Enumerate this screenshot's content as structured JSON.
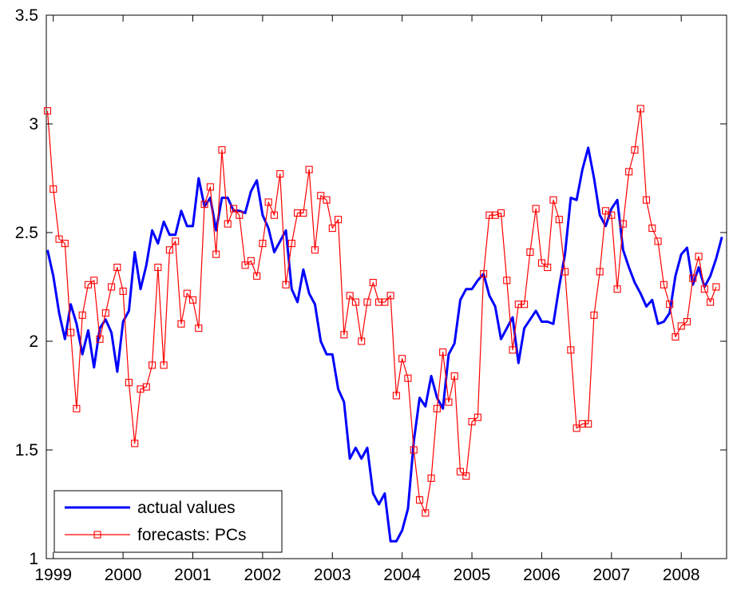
{
  "chart_data": {
    "type": "line",
    "title": "",
    "xlabel": "",
    "ylabel": "",
    "xlim": [
      1998.9,
      2008.65
    ],
    "ylim": [
      1,
      3.5
    ],
    "x_ticks": [
      1999,
      2000,
      2001,
      2002,
      2003,
      2004,
      2005,
      2006,
      2007,
      2008
    ],
    "x_tick_labels": [
      "1999",
      "2000",
      "2001",
      "2002",
      "2003",
      "2004",
      "2005",
      "2006",
      "2007",
      "2008"
    ],
    "y_ticks": [
      1,
      1.5,
      2,
      2.5,
      3,
      3.5
    ],
    "y_tick_labels": [
      "1",
      "1.5",
      "2",
      "2.5",
      "3",
      "3.5"
    ],
    "grid": false,
    "legend_position": "bottom-left",
    "x_start": 1998.917,
    "x_step": 0.08333,
    "series": [
      {
        "name": "actual values",
        "color": "#0000ff",
        "marker": "none",
        "values": [
          2.42,
          2.3,
          2.13,
          2.01,
          2.17,
          2.08,
          1.94,
          2.05,
          1.88,
          2.06,
          2.1,
          2.04,
          1.86,
          2.09,
          2.14,
          2.41,
          2.24,
          2.35,
          2.51,
          2.45,
          2.55,
          2.49,
          2.49,
          2.6,
          2.53,
          2.53,
          2.75,
          2.62,
          2.66,
          2.51,
          2.66,
          2.66,
          2.6,
          2.6,
          2.59,
          2.69,
          2.74,
          2.58,
          2.52,
          2.41,
          2.46,
          2.51,
          2.24,
          2.18,
          2.33,
          2.22,
          2.17,
          2.0,
          1.94,
          1.94,
          1.78,
          1.72,
          1.46,
          1.51,
          1.46,
          1.51,
          1.3,
          1.25,
          1.3,
          1.08,
          1.08,
          1.13,
          1.23,
          1.54,
          1.74,
          1.7,
          1.84,
          1.74,
          1.69,
          1.94,
          1.99,
          2.19,
          2.24,
          2.24,
          2.28,
          2.31,
          2.21,
          2.16,
          2.01,
          2.06,
          2.11,
          1.9,
          2.06,
          2.1,
          2.14,
          2.09,
          2.09,
          2.08,
          2.25,
          2.4,
          2.66,
          2.65,
          2.79,
          2.89,
          2.75,
          2.58,
          2.53,
          2.61,
          2.65,
          2.42,
          2.34,
          2.27,
          2.22,
          2.16,
          2.19,
          2.08,
          2.09,
          2.13,
          2.3,
          2.4,
          2.43,
          2.26,
          2.34,
          2.25,
          2.3,
          2.38,
          2.48
        ]
      },
      {
        "name": "forecasts: PCs",
        "color": "#ff0000",
        "marker": "square",
        "values": [
          3.06,
          2.7,
          2.47,
          2.45,
          2.04,
          1.69,
          2.12,
          2.26,
          2.28,
          2.01,
          2.13,
          2.25,
          2.34,
          2.23,
          1.81,
          1.53,
          1.78,
          1.79,
          1.89,
          2.34,
          1.89,
          2.42,
          2.46,
          2.08,
          2.22,
          2.19,
          2.06,
          2.63,
          2.71,
          2.4,
          2.88,
          2.54,
          2.61,
          2.58,
          2.35,
          2.37,
          2.3,
          2.45,
          2.64,
          2.58,
          2.77,
          2.26,
          2.45,
          2.59,
          2.59,
          2.79,
          2.42,
          2.67,
          2.65,
          2.52,
          2.56,
          2.03,
          2.21,
          2.18,
          2.0,
          2.18,
          2.27,
          2.18,
          2.18,
          2.21,
          1.75,
          1.92,
          1.83,
          1.5,
          1.27,
          1.21,
          1.37,
          1.69,
          1.95,
          1.72,
          1.84,
          1.4,
          1.38,
          1.63,
          1.65,
          2.31,
          2.58,
          2.58,
          2.59,
          2.28,
          1.96,
          2.17,
          2.17,
          2.41,
          2.61,
          2.36,
          2.34,
          2.65,
          2.56,
          2.32,
          1.96,
          1.6,
          1.62,
          1.62,
          2.12,
          2.32,
          2.6,
          2.58,
          2.24,
          2.54,
          2.78,
          2.88,
          3.07,
          2.65,
          2.52,
          2.46,
          2.26,
          2.17,
          2.02,
          2.07,
          2.09,
          2.29,
          2.39,
          2.24,
          2.18,
          2.25
        ]
      }
    ]
  }
}
